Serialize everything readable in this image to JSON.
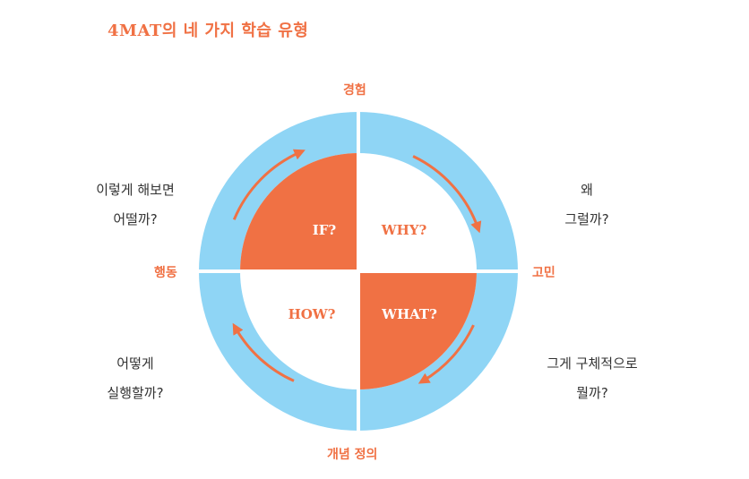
{
  "title": "4MAT의 네 가지 학습 유형",
  "axes": {
    "top": "경험",
    "right": "고민",
    "bottom": "개념 정의",
    "left": "행동"
  },
  "quadrants": {
    "top_right": "WHY?",
    "bottom_right": "WHAT?",
    "bottom_left": "HOW?",
    "top_left": "IF?"
  },
  "questions": {
    "top_right": [
      "왜",
      "그럴까?"
    ],
    "bottom_right": [
      "그게 구체적으로",
      "뭘까?"
    ],
    "bottom_left": [
      "어떻게",
      "실행할까?"
    ],
    "top_left": [
      "이렇게 해보면",
      "어떨까?"
    ]
  },
  "colors": {
    "accent": "#f07144",
    "ring": "#8fd5f5"
  }
}
